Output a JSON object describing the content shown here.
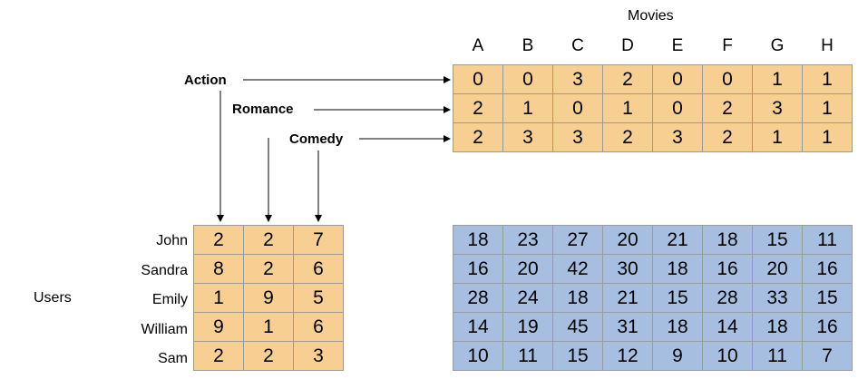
{
  "movies_title": "Movies",
  "movies": [
    "A",
    "B",
    "C",
    "D",
    "E",
    "F",
    "G",
    "H"
  ],
  "genres": [
    "Action",
    "Romance",
    "Comedy"
  ],
  "genre_matrix": [
    [
      0,
      0,
      3,
      2,
      0,
      0,
      1,
      1
    ],
    [
      2,
      1,
      0,
      1,
      0,
      2,
      3,
      1
    ],
    [
      2,
      3,
      3,
      2,
      3,
      2,
      1,
      1
    ]
  ],
  "users_title": "Users",
  "users": [
    "John",
    "Sandra",
    "Emily",
    "William",
    "Sam"
  ],
  "user_matrix": [
    [
      2,
      2,
      7
    ],
    [
      8,
      2,
      6
    ],
    [
      1,
      9,
      5
    ],
    [
      9,
      1,
      6
    ],
    [
      2,
      2,
      3
    ]
  ],
  "result_matrix": [
    [
      18,
      23,
      27,
      20,
      21,
      18,
      15,
      11
    ],
    [
      16,
      20,
      42,
      30,
      18,
      16,
      20,
      16
    ],
    [
      28,
      24,
      18,
      21,
      15,
      28,
      33,
      15
    ],
    [
      14,
      19,
      45,
      31,
      18,
      14,
      18,
      16
    ],
    [
      10,
      11,
      15,
      12,
      9,
      10,
      11,
      7
    ]
  ],
  "colors": {
    "orange": "#f8cf93",
    "blue": "#a6bfe1",
    "border": "#9a9a9a"
  }
}
